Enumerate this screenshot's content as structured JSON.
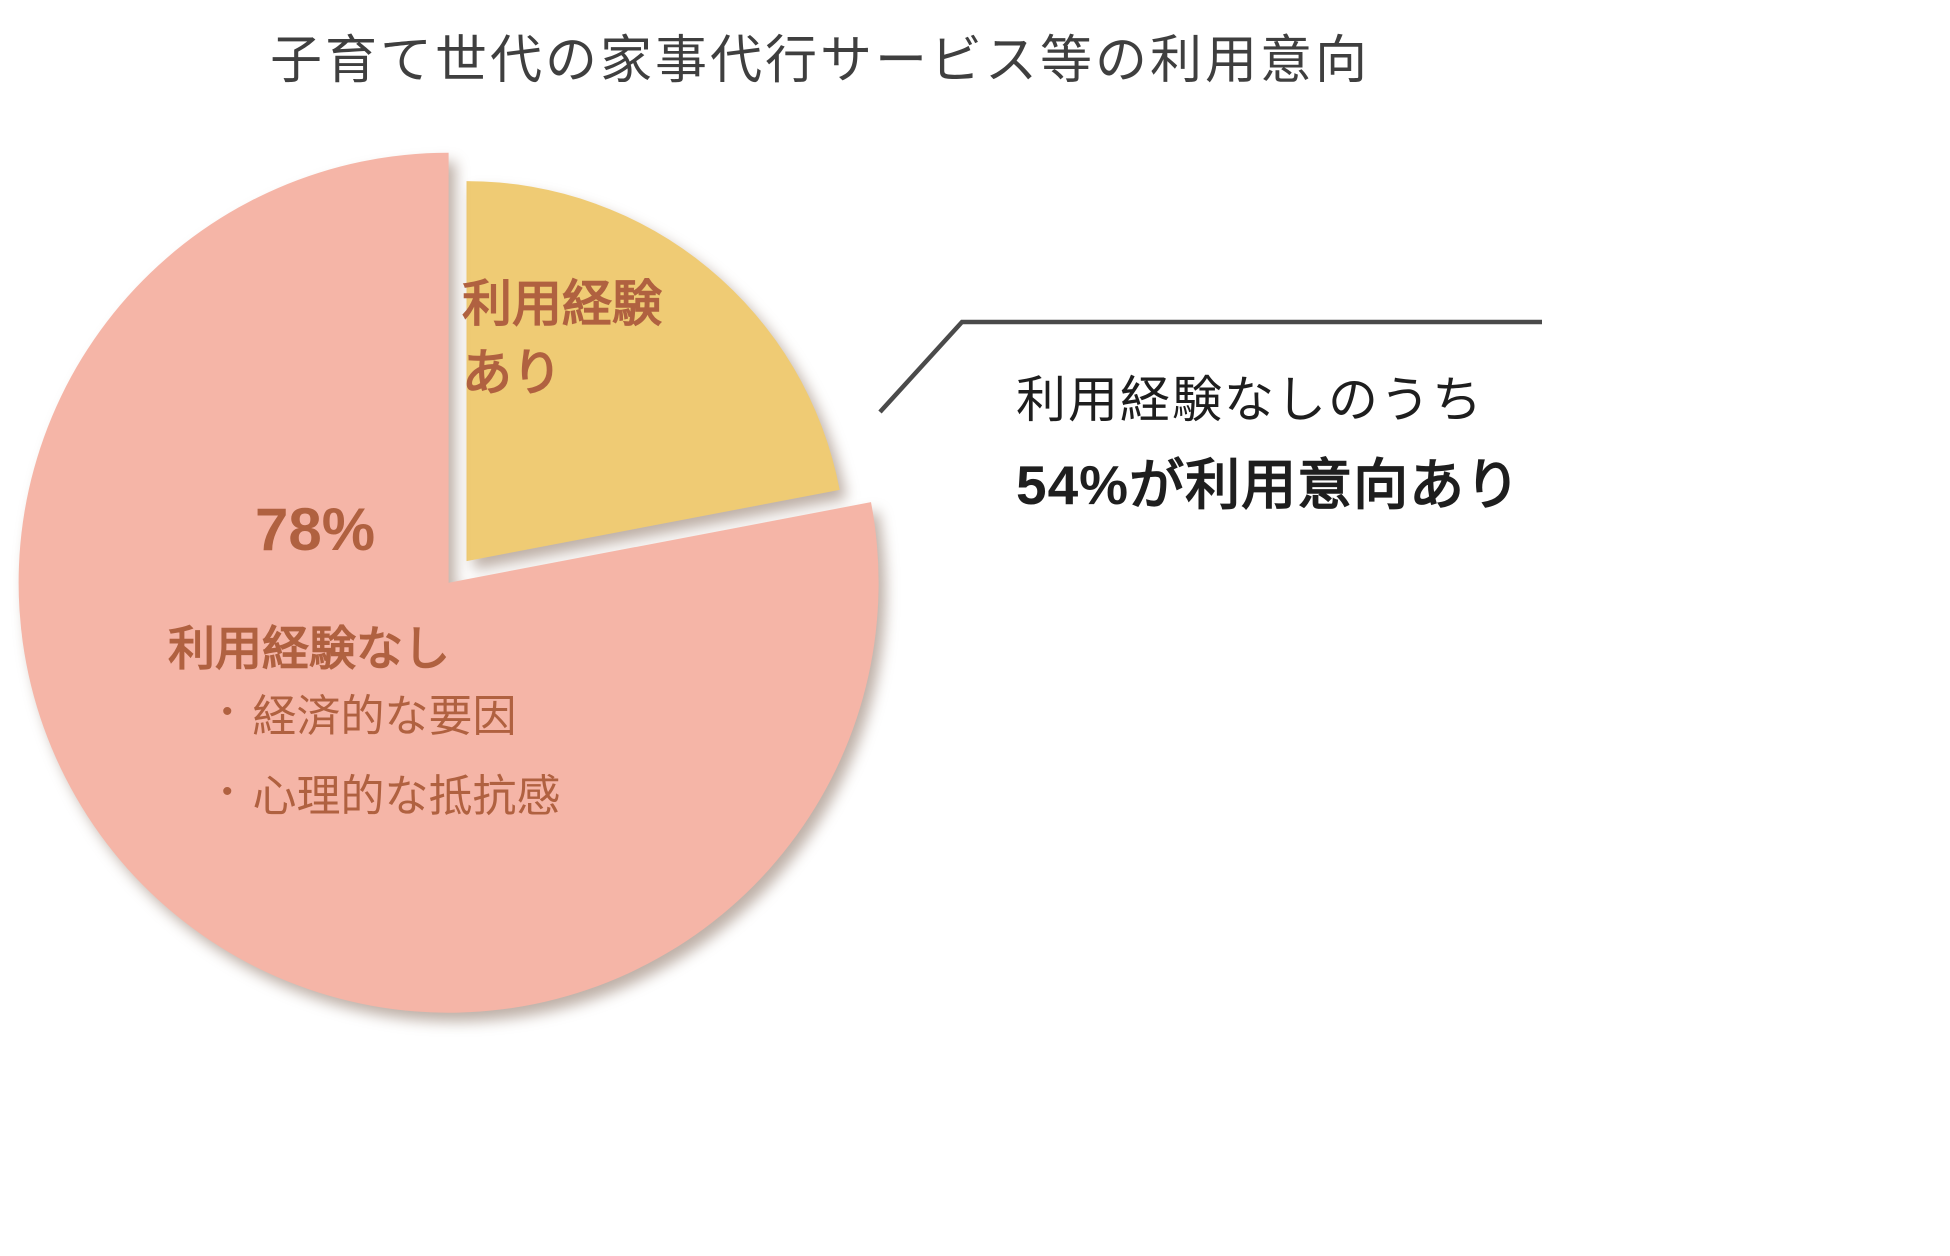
{
  "title": "子育て世代の家事代行サービス等の利用意向",
  "colors": {
    "pink": "#f5b5a7",
    "yellow": "#efcb74",
    "label_brown": "#b06140",
    "title_gray": "#3f3f3f",
    "callout_line": "#4a4a4a",
    "annotation_black": "#1e1e1e"
  },
  "chart_data": {
    "type": "pie",
    "title": "子育て世代の家事代行サービス等の利用意向",
    "slices": [
      {
        "label": "利用経験あり",
        "value": 22,
        "color": "#efcb74"
      },
      {
        "label": "利用経験なし",
        "value": 78,
        "color": "#f5b5a7"
      }
    ],
    "legend_position": "inside",
    "annotations": [
      "利用経験なしのうち",
      "54%が利用意向あり"
    ]
  },
  "pie_labels": {
    "experience_yes": "利用経験\nあり",
    "pct": "78%",
    "experience_no": "利用経験なし",
    "bullet_char": "•",
    "bullets": [
      "経済的な要因",
      "心理的な抵抗感"
    ]
  },
  "annotation": {
    "line1": "利用経験なしのうち",
    "line2": "54%が利用意向あり"
  }
}
